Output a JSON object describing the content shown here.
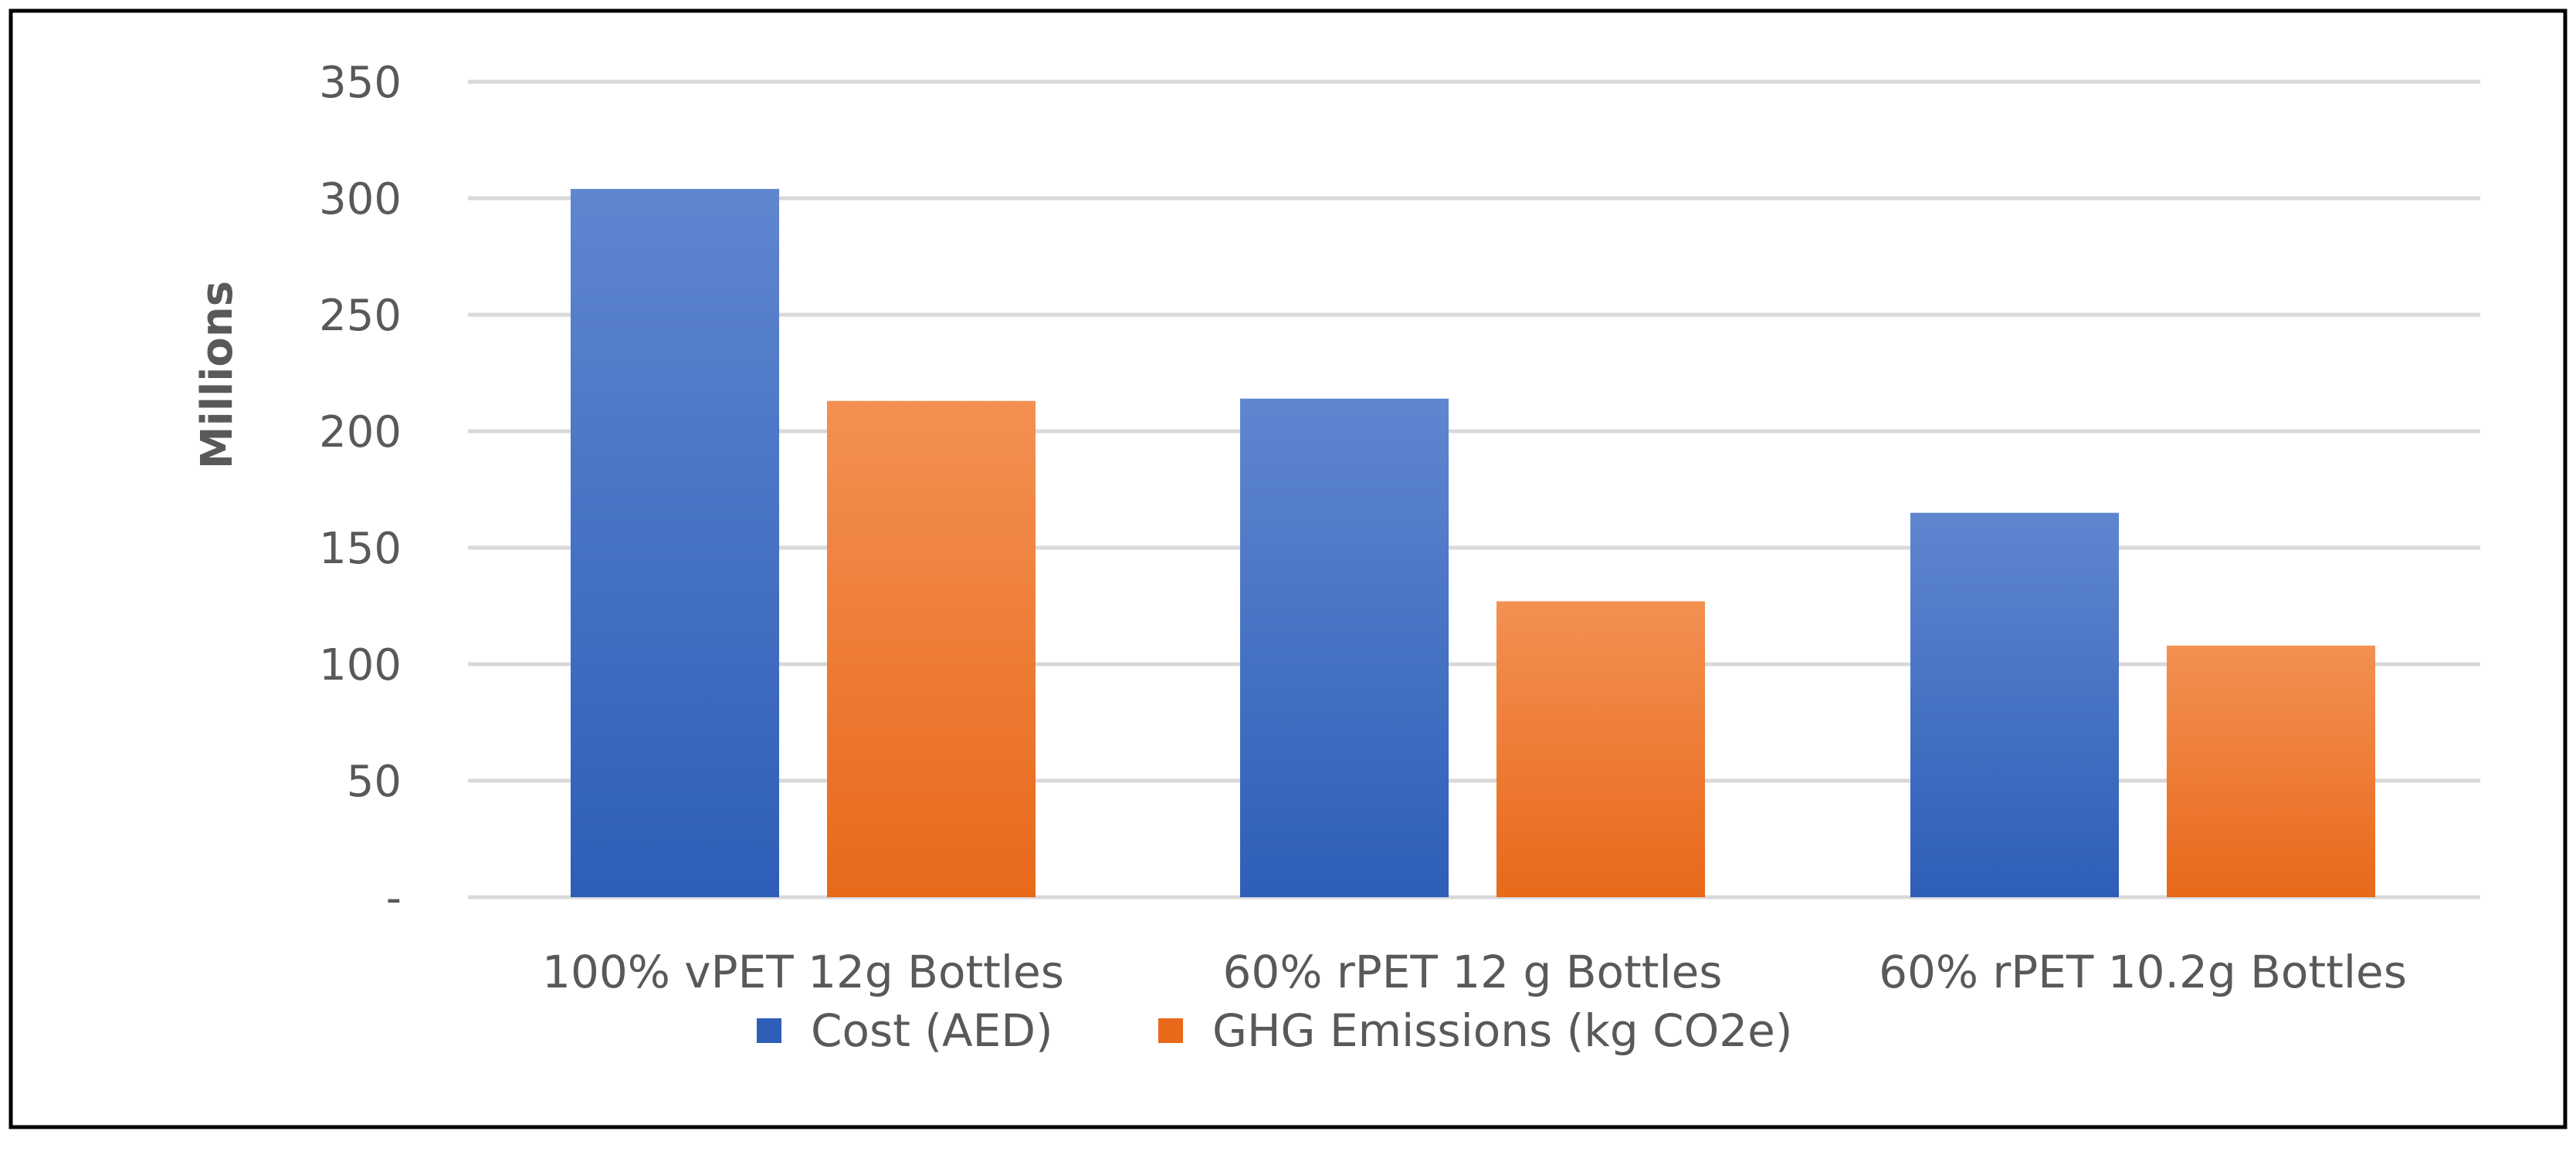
{
  "chart_data": {
    "type": "bar",
    "title": "",
    "xlabel": "",
    "ylabel": "Millions",
    "ylim": [
      0,
      350
    ],
    "yticks": [
      0,
      50,
      100,
      150,
      200,
      250,
      300,
      350
    ],
    "ytick_labels": [
      "-",
      "50",
      "100",
      "150",
      "200",
      "250",
      "300",
      "350"
    ],
    "grid": true,
    "legend_position": "bottom",
    "categories": [
      "100% vPET 12g Bottles",
      "60% rPET 12 g Bottles",
      "60% rPET 10.2g Bottles"
    ],
    "series": [
      {
        "name": "Cost (AED)",
        "values": [
          304,
          214,
          165
        ]
      },
      {
        "name": "GHG Emissions (kg CO2e)",
        "values": [
          213,
          127,
          108
        ]
      }
    ]
  },
  "colors": {
    "series_0_top": "#5f86cf",
    "series_0_bottom": "#2e5eb8",
    "series_1_top": "#f39052",
    "series_1_bottom": "#e8691a",
    "grid": "#d9d9d9",
    "text": "#595959",
    "frame": "#000000"
  }
}
